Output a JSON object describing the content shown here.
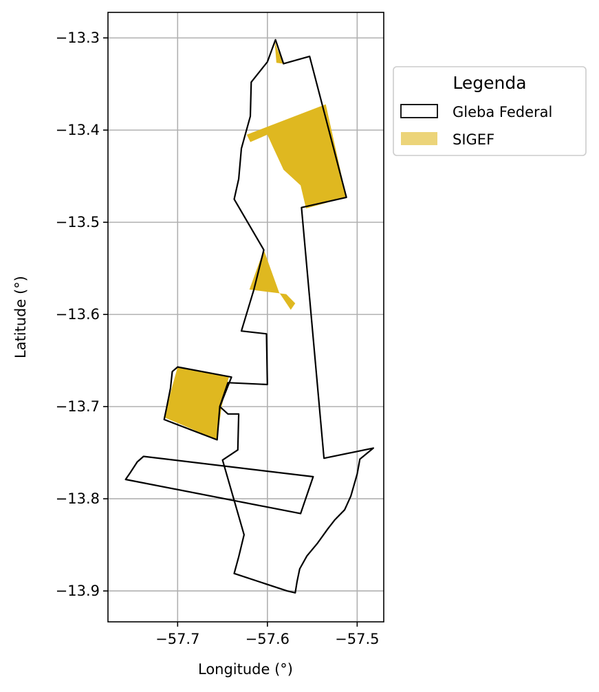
{
  "chart_data": {
    "type": "map",
    "xlabel": "Longitude (°)",
    "ylabel": "Latitude (°)",
    "xlim": [
      -57.7776,
      -57.4704
    ],
    "ylim": [
      -13.9335,
      -13.2723
    ],
    "xticks": [
      -57.7,
      -57.6,
      -57.5
    ],
    "xtick_labels": [
      "−57.7",
      "−57.6",
      "−57.5"
    ],
    "yticks": [
      -13.3,
      -13.4,
      -13.5,
      -13.6,
      -13.7,
      -13.8,
      -13.9
    ],
    "ytick_labels": [
      "−13.3",
      "−13.4",
      "−13.5",
      "−13.6",
      "−13.7",
      "−13.8",
      "−13.9"
    ],
    "grid": true,
    "legend": {
      "title": "Legenda",
      "placement": "outside right, upper",
      "entries": [
        {
          "label": "Gleba Federal",
          "style": "outline",
          "edge_color": "#000000",
          "fill_color": "#ffffff"
        },
        {
          "label": "SIGEF",
          "style": "filled",
          "fill_color": "#dfb820",
          "alpha": 0.6
        }
      ]
    },
    "layers": [
      {
        "name": "Gleba Federal",
        "type": "polygon",
        "edge_color": "#000000",
        "fill_color": "none",
        "coords": [
          [
            -57.591,
            -13.302
          ],
          [
            -57.582,
            -13.328
          ],
          [
            -57.553,
            -13.32
          ],
          [
            -57.512,
            -13.473
          ],
          [
            -57.562,
            -13.484
          ],
          [
            -57.537,
            -13.756
          ],
          [
            -57.482,
            -13.745
          ],
          [
            -57.497,
            -13.757
          ],
          [
            -57.5,
            -13.773
          ],
          [
            -57.507,
            -13.797
          ],
          [
            -57.514,
            -13.812
          ],
          [
            -57.525,
            -13.823
          ],
          [
            -57.533,
            -13.833
          ],
          [
            -57.544,
            -13.848
          ],
          [
            -57.556,
            -13.862
          ],
          [
            -57.564,
            -13.876
          ],
          [
            -57.567,
            -13.89
          ],
          [
            -57.569,
            -13.902
          ],
          [
            -57.578,
            -13.9
          ],
          [
            -57.637,
            -13.881
          ],
          [
            -57.632,
            -13.863
          ],
          [
            -57.626,
            -13.839
          ],
          [
            -57.65,
            -13.758
          ],
          [
            -57.633,
            -13.747
          ],
          [
            -57.632,
            -13.708
          ],
          [
            -57.644,
            -13.708
          ],
          [
            -57.653,
            -13.7
          ],
          [
            -57.644,
            -13.674
          ],
          [
            -57.6,
            -13.676
          ],
          [
            -57.601,
            -13.621
          ],
          [
            -57.629,
            -13.618
          ],
          [
            -57.615,
            -13.573
          ],
          [
            -57.604,
            -13.53
          ],
          [
            -57.637,
            -13.475
          ],
          [
            -57.632,
            -13.453
          ],
          [
            -57.629,
            -13.42
          ],
          [
            -57.619,
            -13.385
          ],
          [
            -57.618,
            -13.348
          ],
          [
            -57.6,
            -13.326
          ],
          [
            -57.591,
            -13.302
          ]
        ]
      },
      {
        "name": "Gleba Federal",
        "type": "polygon",
        "edge_color": "#000000",
        "fill_color": "none",
        "coords": [
          [
            -57.7,
            -13.657
          ],
          [
            -57.64,
            -13.668
          ],
          [
            -57.653,
            -13.7
          ],
          [
            -57.656,
            -13.736
          ],
          [
            -57.715,
            -13.714
          ],
          [
            -57.712,
            -13.7
          ],
          [
            -57.708,
            -13.68
          ],
          [
            -57.706,
            -13.662
          ],
          [
            -57.7,
            -13.657
          ]
        ]
      },
      {
        "name": "Gleba Federal",
        "type": "polygon",
        "edge_color": "#000000",
        "fill_color": "none",
        "coords": [
          [
            -57.738,
            -13.754
          ],
          [
            -57.549,
            -13.776
          ],
          [
            -57.563,
            -13.816
          ],
          [
            -57.758,
            -13.779
          ],
          [
            -57.753,
            -13.772
          ],
          [
            -57.745,
            -13.76
          ],
          [
            -57.738,
            -13.754
          ]
        ]
      },
      {
        "name": "SIGEF",
        "type": "polygon",
        "fill_color": "#dfb820",
        "coords": [
          [
            -57.592,
            -13.303
          ],
          [
            -57.589,
            -13.312
          ],
          [
            -57.582,
            -13.328
          ],
          [
            -57.59,
            -13.327
          ],
          [
            -57.592,
            -13.303
          ]
        ]
      },
      {
        "name": "SIGEF",
        "type": "polygon",
        "fill_color": "#dfb820",
        "coords": [
          [
            -57.535,
            -13.372
          ],
          [
            -57.512,
            -13.473
          ],
          [
            -57.557,
            -13.485
          ],
          [
            -57.563,
            -13.46
          ],
          [
            -57.582,
            -13.443
          ],
          [
            -57.594,
            -13.418
          ],
          [
            -57.6,
            -13.405
          ],
          [
            -57.619,
            -13.413
          ],
          [
            -57.623,
            -13.405
          ],
          [
            -57.535,
            -13.372
          ]
        ]
      },
      {
        "name": "SIGEF",
        "type": "polygon",
        "fill_color": "#dfb820",
        "coords": [
          [
            -57.604,
            -13.53
          ],
          [
            -57.62,
            -13.573
          ],
          [
            -57.579,
            -13.578
          ],
          [
            -57.569,
            -13.588
          ],
          [
            -57.574,
            -13.595
          ],
          [
            -57.587,
            -13.576
          ],
          [
            -57.604,
            -13.53
          ]
        ]
      },
      {
        "name": "SIGEF",
        "type": "polygon",
        "fill_color": "#dfb820",
        "coords": [
          [
            -57.7,
            -13.657
          ],
          [
            -57.643,
            -13.668
          ],
          [
            -57.651,
            -13.7
          ],
          [
            -57.656,
            -13.736
          ],
          [
            -57.714,
            -13.712
          ],
          [
            -57.708,
            -13.685
          ],
          [
            -57.7,
            -13.657
          ]
        ]
      }
    ]
  }
}
